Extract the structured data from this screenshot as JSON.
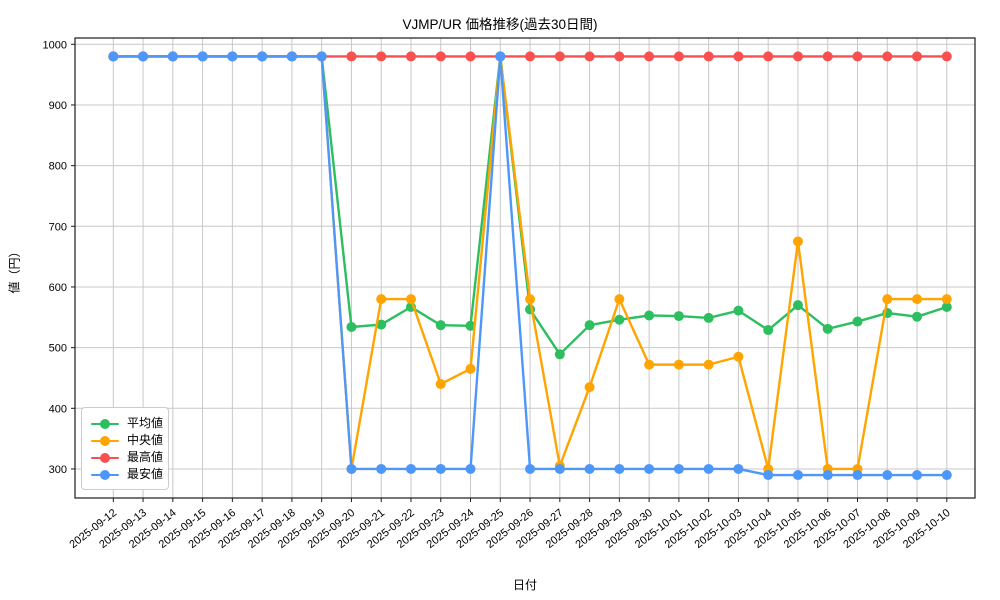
{
  "chart_data": {
    "type": "line",
    "title": "VJMP/UR 価格推移(過去30日間)",
    "xlabel": "日付",
    "ylabel": "値（円）",
    "grid": true,
    "legend_position": "lower-left",
    "yticks": [
      300,
      400,
      500,
      600,
      700,
      800,
      900,
      1000
    ],
    "ylim": [
      252,
      1010
    ],
    "x": [
      "2025-09-12",
      "2025-09-13",
      "2025-09-14",
      "2025-09-15",
      "2025-09-16",
      "2025-09-17",
      "2025-09-18",
      "2025-09-19",
      "2025-09-20",
      "2025-09-21",
      "2025-09-22",
      "2025-09-23",
      "2025-09-24",
      "2025-09-25",
      "2025-09-26",
      "2025-09-27",
      "2025-09-28",
      "2025-09-29",
      "2025-09-30",
      "2025-10-01",
      "2025-10-02",
      "2025-10-03",
      "2025-10-04",
      "2025-10-05",
      "2025-10-06",
      "2025-10-07",
      "2025-10-08",
      "2025-10-09",
      "2025-10-10"
    ],
    "series": [
      {
        "id": "average",
        "name": "平均値",
        "color": "#2dbe60",
        "values": [
          980,
          980,
          980,
          980,
          980,
          980,
          980,
          980,
          534,
          538,
          567,
          537,
          536,
          980,
          563,
          489,
          537,
          546,
          553,
          552,
          549,
          561,
          529,
          570,
          531,
          543,
          557,
          551,
          567
        ]
      },
      {
        "id": "median",
        "name": "中央値",
        "color": "#ffa400",
        "values": [
          980,
          980,
          980,
          980,
          980,
          980,
          980,
          980,
          300,
          580,
          580,
          440,
          465,
          980,
          580,
          305,
          435,
          580,
          472,
          472,
          472,
          485,
          300,
          675,
          300,
          300,
          580,
          580,
          580
        ]
      },
      {
        "id": "highest",
        "name": "最高値",
        "color": "#f8504e",
        "values": [
          980,
          980,
          980,
          980,
          980,
          980,
          980,
          980,
          980,
          980,
          980,
          980,
          980,
          980,
          980,
          980,
          980,
          980,
          980,
          980,
          980,
          980,
          980,
          980,
          980,
          980,
          980,
          980,
          980
        ]
      },
      {
        "id": "lowest",
        "name": "最安値",
        "color": "#4e97fa",
        "values": [
          980,
          980,
          980,
          980,
          980,
          980,
          980,
          980,
          300,
          300,
          300,
          300,
          300,
          980,
          300,
          300,
          300,
          300,
          300,
          300,
          300,
          300,
          290,
          290,
          290,
          290,
          290,
          290,
          290
        ]
      }
    ],
    "colors": {
      "grid": "#c8c8c8",
      "spine": "#1a1a1a",
      "tick_text": "#000000"
    }
  }
}
